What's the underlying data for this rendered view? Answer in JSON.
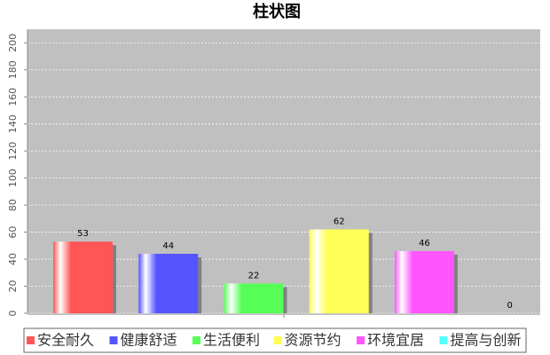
{
  "chart_data": {
    "type": "bar",
    "title": "柱状图",
    "categories": [
      null
    ],
    "series": [
      {
        "name": "安全耐久",
        "color": "#ff5555",
        "values": [
          53
        ]
      },
      {
        "name": "健康舒适",
        "color": "#5555ff",
        "values": [
          44
        ]
      },
      {
        "name": "生活便利",
        "color": "#55ff55",
        "values": [
          22
        ]
      },
      {
        "name": "资源节约",
        "color": "#ffff55",
        "values": [
          62
        ]
      },
      {
        "name": "环境宜居",
        "color": "#ff55ff",
        "values": [
          46
        ]
      },
      {
        "name": "提高与创新",
        "color": "#55ffff",
        "values": [
          0
        ]
      }
    ],
    "ylim": [
      0,
      210
    ],
    "yticks": [
      0,
      20,
      40,
      60,
      80,
      100,
      120,
      140,
      160,
      180,
      200
    ],
    "grid": true
  }
}
